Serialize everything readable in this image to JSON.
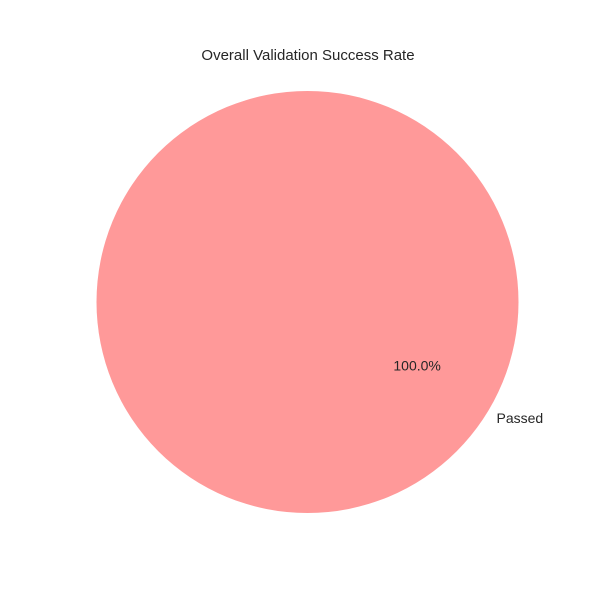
{
  "chart_data": {
    "type": "pie",
    "title": "Overall Validation Success Rate",
    "categories": [
      "Passed"
    ],
    "values": [
      100
    ],
    "percent_labels": [
      "100.0%"
    ],
    "colors": [
      "#ff9999"
    ]
  }
}
